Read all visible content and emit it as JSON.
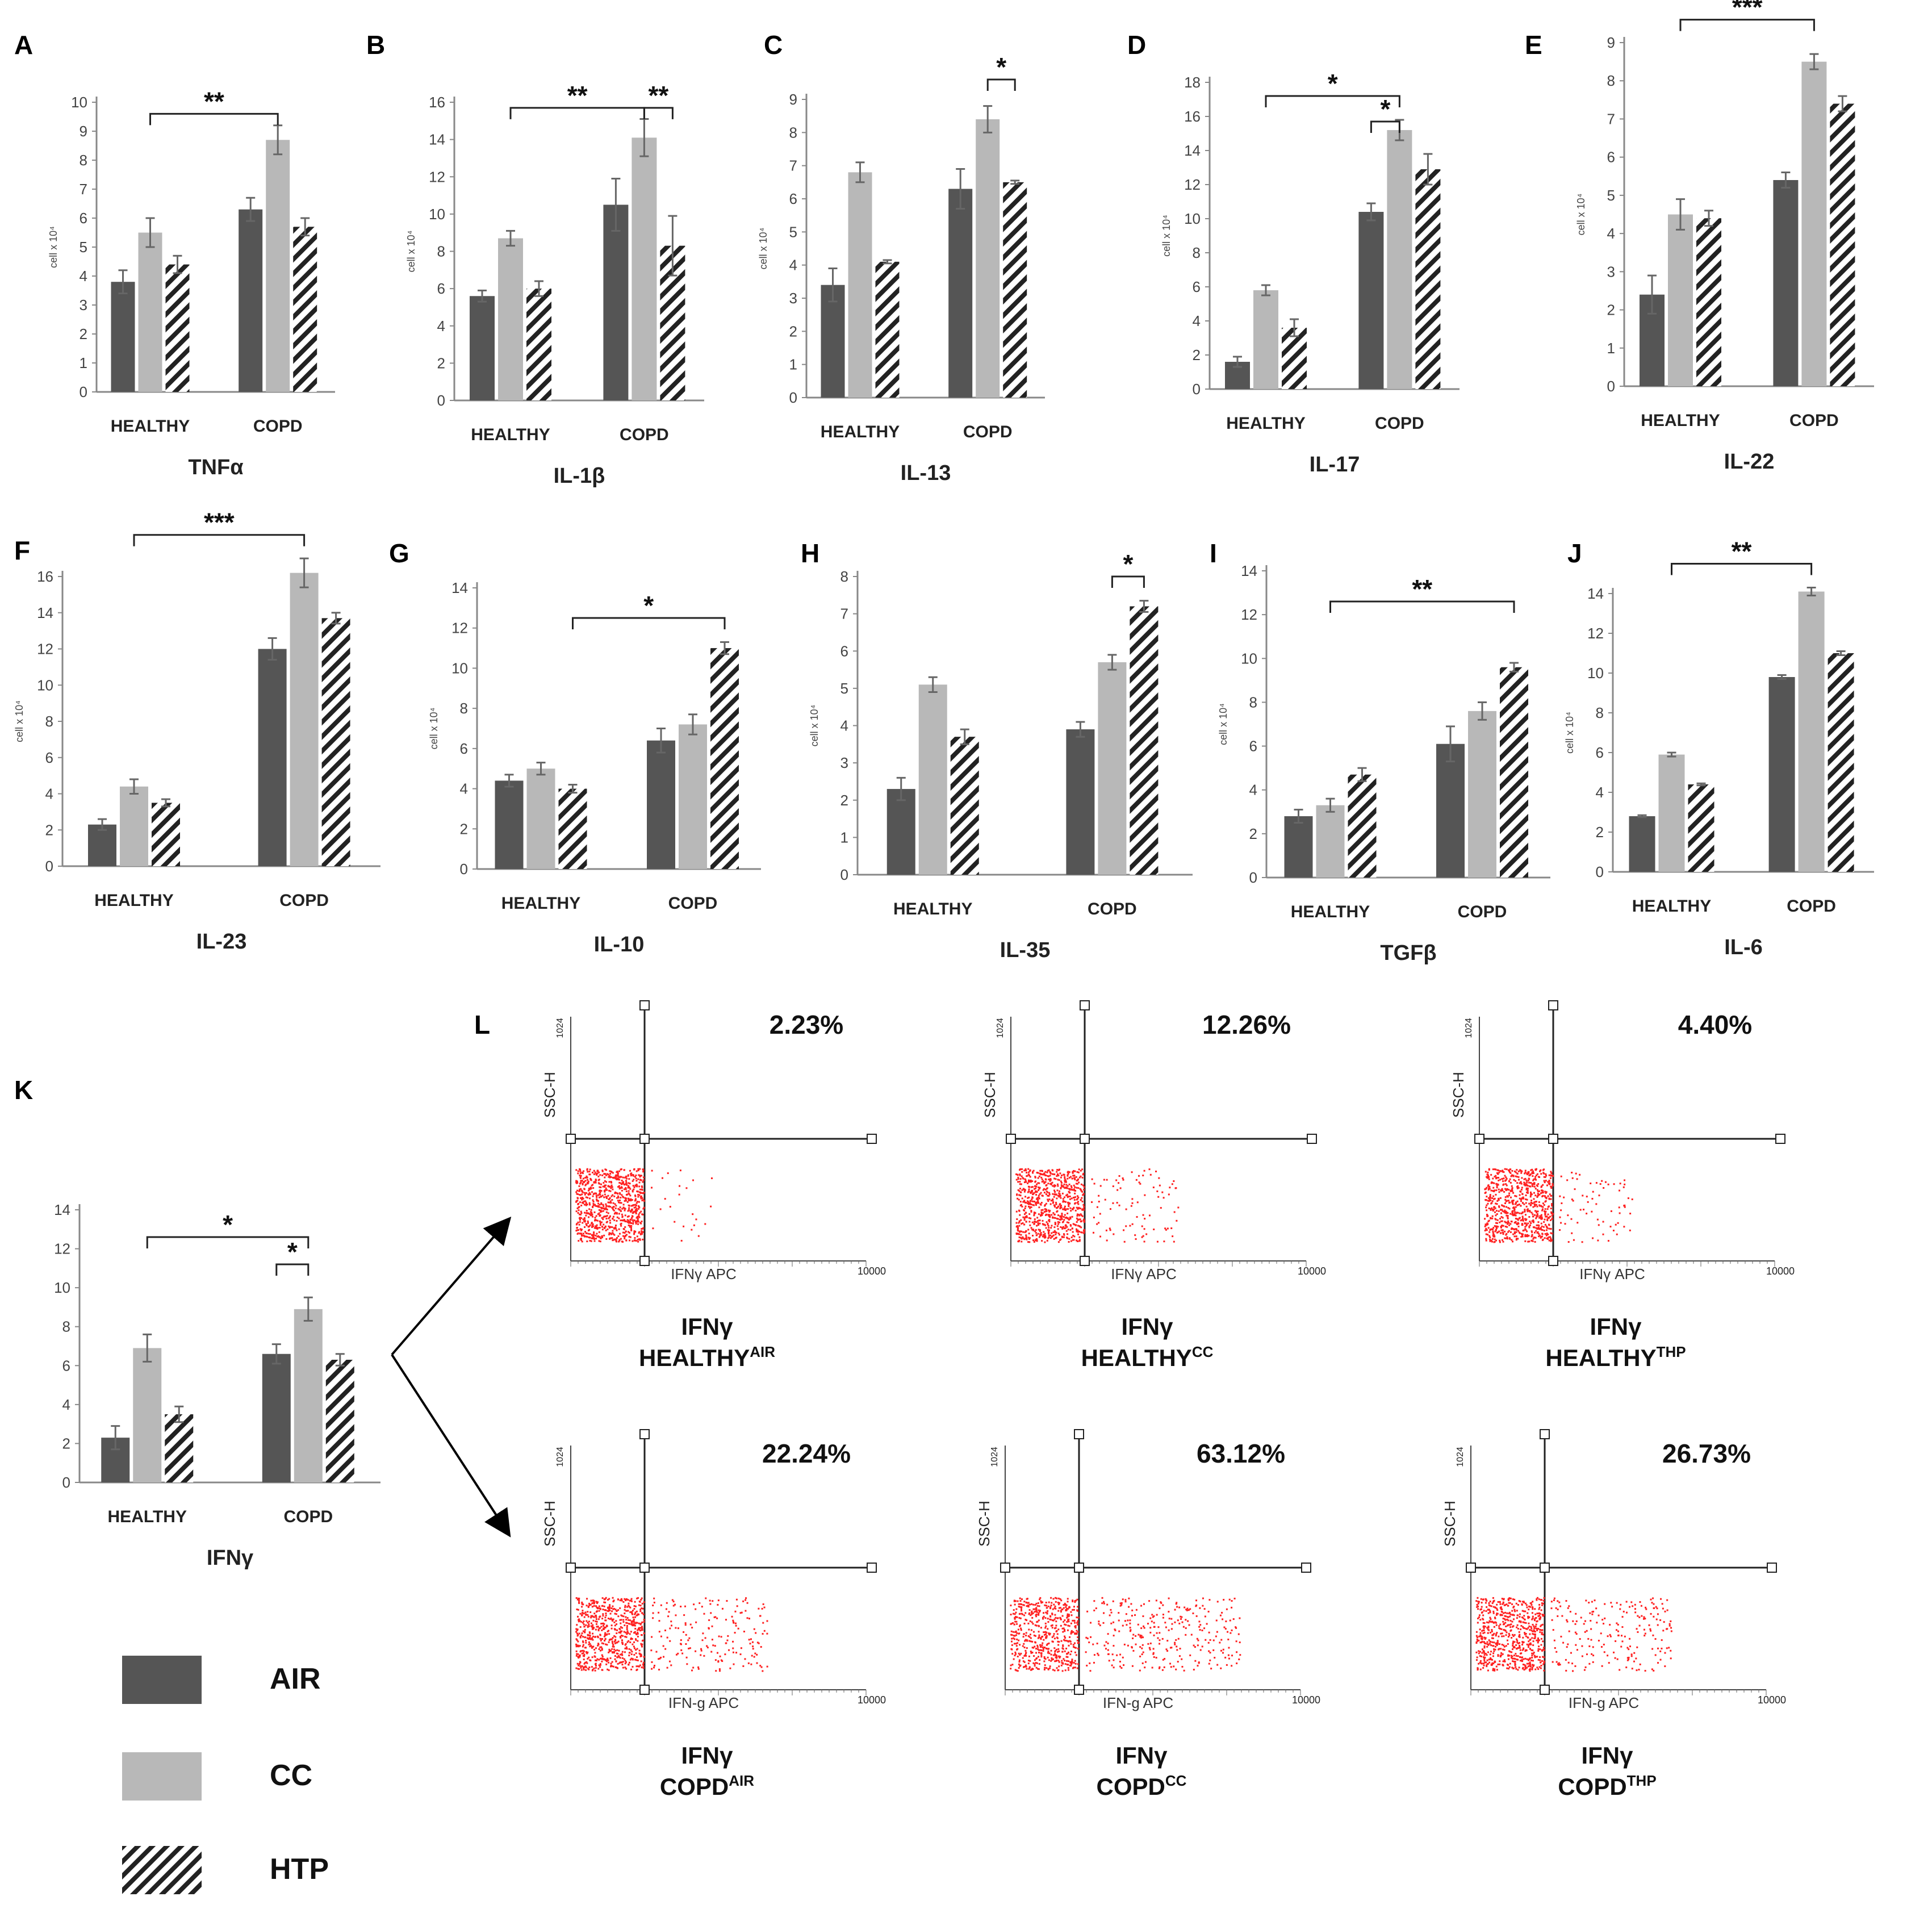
{
  "legend": [
    {
      "label": "AIR",
      "key": "air"
    },
    {
      "label": "CC",
      "key": "cc"
    },
    {
      "label": "HTP",
      "key": "htp"
    }
  ],
  "colors": {
    "air": "#555555",
    "cc": "#b8b8b8",
    "htp_stripe": "#222222",
    "axis": "#888888",
    "dots": "#ff2020"
  },
  "chart_data": [
    {
      "panel": "A",
      "type": "bar",
      "title": "TNFα",
      "ylabel": "cell x 10⁴",
      "ylim": [
        0,
        10
      ],
      "yticks": [
        0,
        1,
        2,
        3,
        4,
        5,
        6,
        7,
        8,
        9,
        10
      ],
      "categories": [
        "HEALTHY",
        "COPD"
      ],
      "series": [
        {
          "name": "AIR",
          "values": [
            3.8,
            6.3
          ],
          "errors": [
            0.4,
            0.4
          ]
        },
        {
          "name": "CC",
          "values": [
            5.5,
            8.7
          ],
          "errors": [
            0.5,
            0.5
          ]
        },
        {
          "name": "HTP",
          "values": [
            4.4,
            5.7
          ],
          "errors": [
            0.3,
            0.3
          ]
        }
      ],
      "significance": [
        {
          "label": "**",
          "from": [
            0,
            1
          ],
          "to": [
            1,
            1
          ],
          "y": 9.6
        }
      ]
    },
    {
      "panel": "B",
      "type": "bar",
      "title": "IL-1β",
      "ylabel": "cell x 10⁴",
      "ylim": [
        0,
        16
      ],
      "yticks": [
        0,
        2,
        4,
        6,
        8,
        10,
        12,
        14,
        16
      ],
      "categories": [
        "HEALTHY",
        "COPD"
      ],
      "series": [
        {
          "name": "AIR",
          "values": [
            5.6,
            10.5
          ],
          "errors": [
            0.3,
            1.4
          ]
        },
        {
          "name": "CC",
          "values": [
            8.7,
            14.1
          ],
          "errors": [
            0.4,
            1.0
          ]
        },
        {
          "name": "HTP",
          "values": [
            6.0,
            8.3
          ],
          "errors": [
            0.4,
            1.6
          ]
        }
      ],
      "significance": [
        {
          "label": "**",
          "from": [
            0,
            1
          ],
          "to": [
            1,
            1
          ],
          "y": 15.7
        },
        {
          "label": "**",
          "from": [
            1,
            1
          ],
          "to": [
            1,
            2
          ],
          "y": 15.7
        }
      ]
    },
    {
      "panel": "C",
      "type": "bar",
      "title": "IL-13",
      "ylabel": "cell x 10⁴",
      "ylim": [
        0,
        9
      ],
      "yticks": [
        0,
        1,
        2,
        3,
        4,
        5,
        6,
        7,
        8,
        9
      ],
      "categories": [
        "HEALTHY",
        "COPD"
      ],
      "series": [
        {
          "name": "AIR",
          "values": [
            3.4,
            6.3
          ],
          "errors": [
            0.5,
            0.6
          ]
        },
        {
          "name": "CC",
          "values": [
            6.8,
            8.4
          ],
          "errors": [
            0.3,
            0.4
          ]
        },
        {
          "name": "HTP",
          "values": [
            4.1,
            6.5
          ],
          "errors": [
            0.05,
            0.05
          ]
        }
      ],
      "significance": [
        {
          "label": "*",
          "from": [
            1,
            1
          ],
          "to": [
            1,
            2
          ],
          "y": 9.6
        }
      ]
    },
    {
      "panel": "D",
      "type": "bar",
      "title": "IL-17",
      "ylabel": "cell x 10⁴",
      "ylim": [
        0,
        18
      ],
      "yticks": [
        0,
        2,
        4,
        6,
        8,
        10,
        12,
        14,
        16,
        18
      ],
      "categories": [
        "HEALTHY",
        "COPD"
      ],
      "series": [
        {
          "name": "AIR",
          "values": [
            1.6,
            10.4
          ],
          "errors": [
            0.3,
            0.5
          ]
        },
        {
          "name": "CC",
          "values": [
            5.8,
            15.2
          ],
          "errors": [
            0.3,
            0.6
          ]
        },
        {
          "name": "HTP",
          "values": [
            3.6,
            12.9
          ],
          "errors": [
            0.5,
            0.9
          ]
        }
      ],
      "significance": [
        {
          "label": "*",
          "from": [
            0,
            1
          ],
          "to": [
            1,
            1
          ],
          "y": 17.2
        },
        {
          "label": "*",
          "from": [
            1,
            0
          ],
          "to": [
            1,
            1
          ],
          "y": 15.7
        }
      ]
    },
    {
      "panel": "E",
      "type": "bar",
      "title": "IL-22",
      "ylabel": "cell x 10⁴",
      "ylim": [
        0,
        9
      ],
      "yticks": [
        0,
        1,
        2,
        3,
        4,
        5,
        6,
        7,
        8,
        9
      ],
      "categories": [
        "HEALTHY",
        "COPD"
      ],
      "series": [
        {
          "name": "AIR",
          "values": [
            2.4,
            5.4
          ],
          "errors": [
            0.5,
            0.2
          ]
        },
        {
          "name": "CC",
          "values": [
            4.5,
            8.5
          ],
          "errors": [
            0.4,
            0.2
          ]
        },
        {
          "name": "HTP",
          "values": [
            4.4,
            7.4
          ],
          "errors": [
            0.2,
            0.2
          ]
        }
      ],
      "significance": [
        {
          "label": "***",
          "from": [
            0,
            1
          ],
          "to": [
            1,
            1
          ],
          "y": 9.6
        }
      ]
    },
    {
      "panel": "F",
      "type": "bar",
      "title": "IL-23",
      "ylabel": "cell x 10⁴",
      "ylim": [
        0,
        16
      ],
      "yticks": [
        0,
        2,
        4,
        6,
        8,
        10,
        12,
        14,
        16
      ],
      "categories": [
        "HEALTHY",
        "COPD"
      ],
      "series": [
        {
          "name": "AIR",
          "values": [
            2.3,
            12.0
          ],
          "errors": [
            0.3,
            0.6
          ]
        },
        {
          "name": "CC",
          "values": [
            4.4,
            16.2
          ],
          "errors": [
            0.4,
            0.8
          ]
        },
        {
          "name": "HTP",
          "values": [
            3.5,
            13.7
          ],
          "errors": [
            0.2,
            0.3
          ]
        }
      ],
      "significance": [
        {
          "label": "***",
          "from": [
            0,
            1
          ],
          "to": [
            1,
            1
          ],
          "y": 18.3
        }
      ]
    },
    {
      "panel": "G",
      "type": "bar",
      "title": "IL-10",
      "ylabel": "cell x 10⁴",
      "ylim": [
        0,
        14
      ],
      "yticks": [
        0,
        2,
        4,
        6,
        8,
        10,
        12,
        14
      ],
      "categories": [
        "HEALTHY",
        "COPD"
      ],
      "series": [
        {
          "name": "AIR",
          "values": [
            4.4,
            6.4
          ],
          "errors": [
            0.3,
            0.6
          ]
        },
        {
          "name": "CC",
          "values": [
            5.0,
            7.2
          ],
          "errors": [
            0.3,
            0.5
          ]
        },
        {
          "name": "HTP",
          "values": [
            4.0,
            11.0
          ],
          "errors": [
            0.2,
            0.3
          ]
        }
      ],
      "significance": [
        {
          "label": "*",
          "from": [
            0,
            2
          ],
          "to": [
            1,
            2
          ],
          "y": 12.5
        }
      ]
    },
    {
      "panel": "H",
      "type": "bar",
      "title": "IL-35",
      "ylabel": "cell x 10⁴",
      "ylim": [
        0,
        8
      ],
      "yticks": [
        0,
        1,
        2,
        3,
        4,
        5,
        6,
        7,
        8
      ],
      "categories": [
        "HEALTHY",
        "COPD"
      ],
      "series": [
        {
          "name": "AIR",
          "values": [
            2.3,
            3.9
          ],
          "errors": [
            0.3,
            0.2
          ]
        },
        {
          "name": "CC",
          "values": [
            5.1,
            5.7
          ],
          "errors": [
            0.2,
            0.2
          ]
        },
        {
          "name": "HTP",
          "values": [
            3.7,
            7.2
          ],
          "errors": [
            0.2,
            0.15
          ]
        }
      ],
      "significance": [
        {
          "label": "*",
          "from": [
            1,
            1
          ],
          "to": [
            1,
            2
          ],
          "y": 8.0
        }
      ]
    },
    {
      "panel": "I",
      "type": "bar",
      "title": "TGFβ",
      "ylabel": "cell x 10⁴",
      "ylim": [
        0,
        14
      ],
      "yticks": [
        0,
        2,
        4,
        6,
        8,
        10,
        12,
        14
      ],
      "categories": [
        "HEALTHY",
        "COPD"
      ],
      "series": [
        {
          "name": "AIR",
          "values": [
            2.8,
            6.1
          ],
          "errors": [
            0.3,
            0.8
          ]
        },
        {
          "name": "CC",
          "values": [
            3.3,
            7.6
          ],
          "errors": [
            0.3,
            0.4
          ]
        },
        {
          "name": "HTP",
          "values": [
            4.7,
            9.6
          ],
          "errors": [
            0.3,
            0.2
          ]
        }
      ],
      "significance": [
        {
          "label": "**",
          "from": [
            0,
            1
          ],
          "to": [
            1,
            2
          ],
          "y": 12.6
        }
      ]
    },
    {
      "panel": "J",
      "type": "bar",
      "title": "IL-6",
      "ylabel": "cell x 10⁴",
      "ylim": [
        0,
        14
      ],
      "yticks": [
        0,
        2,
        4,
        6,
        8,
        10,
        12,
        14
      ],
      "categories": [
        "HEALTHY",
        "COPD"
      ],
      "series": [
        {
          "name": "AIR",
          "values": [
            2.8,
            9.8
          ],
          "errors": [
            0.05,
            0.1
          ]
        },
        {
          "name": "CC",
          "values": [
            5.9,
            14.1
          ],
          "errors": [
            0.1,
            0.2
          ]
        },
        {
          "name": "HTP",
          "values": [
            4.4,
            11.0
          ],
          "errors": [
            0.05,
            0.1
          ]
        }
      ],
      "significance": [
        {
          "label": "**",
          "from": [
            0,
            1
          ],
          "to": [
            1,
            1
          ],
          "y": 15.5
        }
      ]
    },
    {
      "panel": "K",
      "type": "bar",
      "title": "IFNγ",
      "ylabel": "",
      "ylim": [
        0,
        14
      ],
      "yticks": [
        0,
        2,
        4,
        6,
        8,
        10,
        12,
        14
      ],
      "categories": [
        "HEALTHY",
        "COPD"
      ],
      "series": [
        {
          "name": "AIR",
          "values": [
            2.3,
            6.6
          ],
          "errors": [
            0.6,
            0.5
          ]
        },
        {
          "name": "CC",
          "values": [
            6.9,
            8.9
          ],
          "errors": [
            0.7,
            0.6
          ]
        },
        {
          "name": "HTP",
          "values": [
            3.5,
            6.3
          ],
          "errors": [
            0.4,
            0.3
          ]
        }
      ],
      "significance": [
        {
          "label": "*",
          "from": [
            0,
            1
          ],
          "to": [
            1,
            1
          ],
          "y": 12.6
        },
        {
          "label": "*",
          "from": [
            1,
            0
          ],
          "to": [
            1,
            1
          ],
          "y": 11.2
        }
      ]
    }
  ],
  "flow": {
    "panel": "L",
    "ylabel": "SSC-H",
    "ymax_tick": "1024",
    "xmax_tick": "10000",
    "plots": [
      {
        "pct": "2.23%",
        "xlabel": "IFNγ APC",
        "title": "IFNγ",
        "group": "HEALTHY",
        "sup": "AIR",
        "spread": 0.05
      },
      {
        "pct": "12.26%",
        "xlabel": "IFNγ APC",
        "title": "IFNγ",
        "group": "HEALTHY",
        "sup": "CC",
        "spread": 0.22
      },
      {
        "pct": "4.40%",
        "xlabel": "IFNγ APC",
        "title": "IFNγ",
        "group": "HEALTHY",
        "sup": "THP",
        "spread": 0.12
      },
      {
        "pct": "22.24%",
        "xlabel": "IFN-g APC",
        "title": "IFNγ",
        "group": "COPD",
        "sup": "AIR",
        "spread": 0.42
      },
      {
        "pct": "63.12%",
        "xlabel": "IFN-g APC",
        "title": "IFNγ",
        "group": "COPD",
        "sup": "CC",
        "spread": 0.7
      },
      {
        "pct": "26.73%",
        "xlabel": "IFN-g APC",
        "title": "IFNγ",
        "group": "COPD",
        "sup": "THP",
        "spread": 0.45
      }
    ]
  }
}
